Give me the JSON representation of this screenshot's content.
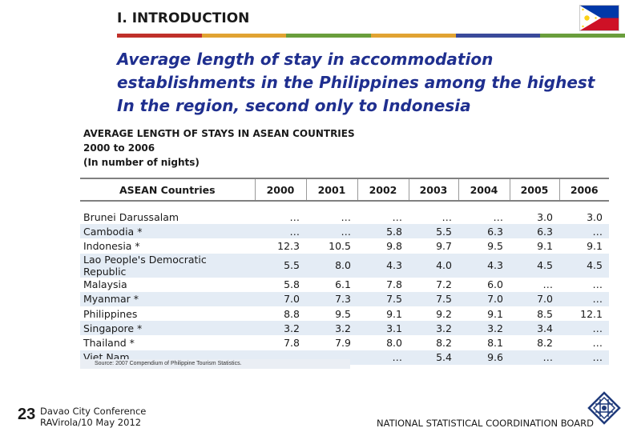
{
  "header": {
    "section": "I. INTRODUCTION",
    "colors": [
      "#c0302a",
      "#e1a332",
      "#6a9e3c",
      "#e1a332",
      "#3a4a9a",
      "#6a9e3c"
    ]
  },
  "headline": {
    "line1": "Average length of stay in accommodation",
    "line2": "establishments in the Philippines among the highest",
    "line3": "In the region, second only to Indonesia"
  },
  "table": {
    "title_line1": "AVERAGE LENGTH OF STAYS IN ASEAN COUNTRIES",
    "title_line2": "2000 to 2006",
    "title_line3": "(In number of nights)",
    "columns": [
      "ASEAN Countries",
      "2000",
      "2001",
      "2002",
      "2003",
      "2004",
      "2005",
      "2006"
    ],
    "rows": [
      {
        "country": "Brunei Darussalam",
        "values": [
          "…",
          "…",
          "…",
          "…",
          "…",
          "3.0",
          "3.0"
        ]
      },
      {
        "country": "Cambodia *",
        "values": [
          "…",
          "…",
          "5.8",
          "5.5",
          "6.3",
          "6.3",
          "…"
        ]
      },
      {
        "country": "Indonesia *",
        "values": [
          "12.3",
          "10.5",
          "9.8",
          "9.7",
          "9.5",
          "9.1",
          "9.1"
        ]
      },
      {
        "country": "Lao People's Democratic Republic",
        "values": [
          "5.5",
          "8.0",
          "4.3",
          "4.0",
          "4.3",
          "4.5",
          "4.5"
        ]
      },
      {
        "country": "Malaysia",
        "values": [
          "5.8",
          "6.1",
          "7.8",
          "7.2",
          "6.0",
          "…",
          "…"
        ]
      },
      {
        "country": "Myanmar *",
        "values": [
          "7.0",
          "7.3",
          "7.5",
          "7.5",
          "7.0",
          "7.0",
          "…"
        ]
      },
      {
        "country": "Philippines",
        "values": [
          "8.8",
          "9.5",
          "9.1",
          "9.2",
          "9.1",
          "8.5",
          "12.1"
        ]
      },
      {
        "country": "Singapore *",
        "values": [
          "3.2",
          "3.2",
          "3.1",
          "3.2",
          "3.2",
          "3.4",
          "…"
        ]
      },
      {
        "country": "Thailand *",
        "values": [
          "7.8",
          "7.9",
          "8.0",
          "8.2",
          "8.1",
          "8.2",
          "…"
        ]
      },
      {
        "country": "Viet Nam",
        "values": [
          "…",
          "…",
          "…",
          "5.4",
          "9.6",
          "…",
          "…"
        ]
      }
    ],
    "source": "Source:  2007 Compendium of Philippine Tourism Statistics."
  },
  "footer": {
    "page_number": "23",
    "conference": "Davao City Conference",
    "presenter": "RAVirola/10 May 2012",
    "agency": "NATIONAL STATISTICAL COORDINATION BOARD"
  }
}
